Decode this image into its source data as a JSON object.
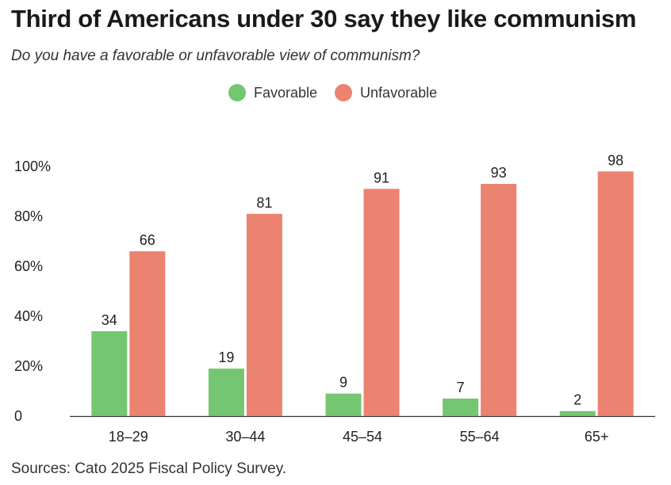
{
  "title": "Third of Americans under 30 say they like communism",
  "subtitle": "Do you have a favorable or unfavorable view of communism?",
  "source": "Sources: Cato 2025 Fiscal Policy Survey.",
  "colors": {
    "favorable": "#74c670",
    "unfavorable": "#ec8270",
    "axis": "#333333",
    "text": "#222222"
  },
  "chart_data": {
    "type": "bar",
    "categories": [
      "18–29",
      "30–44",
      "45–54",
      "55–64",
      "65+"
    ],
    "series": [
      {
        "name": "Favorable",
        "values": [
          34,
          19,
          9,
          7,
          2
        ]
      },
      {
        "name": "Unfavorable",
        "values": [
          66,
          81,
          91,
          93,
          98
        ]
      }
    ],
    "ylim": [
      0,
      100
    ],
    "yticks": [
      0,
      20,
      40,
      60,
      80,
      100
    ],
    "ytick_labels": [
      "0",
      "20%",
      "40%",
      "60%",
      "80%",
      "100%"
    ],
    "legend_position": "top-center",
    "grid": false,
    "xlabel": "",
    "ylabel": ""
  }
}
